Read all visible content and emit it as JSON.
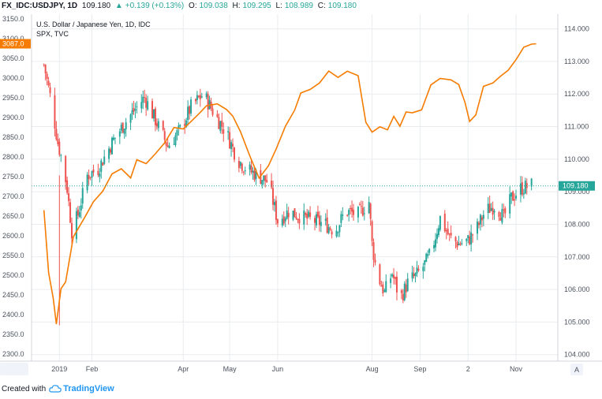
{
  "header": {
    "symbol": "FX_IDC:USDJPY, 1D",
    "last": "109.180",
    "change": "+0.139 (+0.13%)",
    "o_label": "O:",
    "o": "109.038",
    "h_label": "H:",
    "h": "109.295",
    "l_label": "L:",
    "l": "108.989",
    "c_label": "C:",
    "c": "109.180"
  },
  "legend": {
    "line1": "U.S. Dollar / Japanese Yen, 1D, IDC",
    "line2": "SPX, TVC"
  },
  "footer": {
    "created_with": "Created with",
    "brand": "TradingView"
  },
  "colors": {
    "up": "#26a69a",
    "down": "#ef5350",
    "spx": "#f57c00",
    "grid": "#e9ecef",
    "axis_text": "#4c525e",
    "price_line": "#26a69a"
  },
  "chart_data": {
    "type": "candlestick+line",
    "x_labels": [
      {
        "text": "2019",
        "day": 10
      },
      {
        "text": "Feb",
        "day": 31
      },
      {
        "text": "Apr",
        "day": 90
      },
      {
        "text": "May",
        "day": 120
      },
      {
        "text": "Jun",
        "day": 151
      },
      {
        "text": "Aug",
        "day": 212
      },
      {
        "text": "Sep",
        "day": 243
      },
      {
        "text": "2",
        "day": 274
      },
      {
        "text": "Nov",
        "day": 305
      }
    ],
    "left_axis": {
      "series": "SPX",
      "ticks": [
        "2300.0",
        "2350.0",
        "2400.0",
        "2450.0",
        "2500.0",
        "2550.0",
        "2600.0",
        "2650.0",
        "2700.0",
        "2750.0",
        "2800.0",
        "2850.0",
        "2900.0",
        "2950.0",
        "3000.0",
        "3050.0",
        "3100.0",
        "3150.0"
      ],
      "min": 2282,
      "max": 3162,
      "current_label": "3087.0"
    },
    "right_axis": {
      "series": "USDJPY",
      "ticks": [
        "104.000",
        "105.000",
        "106.000",
        "107.000",
        "108.000",
        "109.000",
        "110.000",
        "111.000",
        "112.000",
        "113.000",
        "114.000"
      ],
      "min": 103.8,
      "max": 114.45,
      "current_label": "109.180",
      "current_value": 109.18,
      "corner": "A"
    },
    "usdjpy_anchors": [
      [
        0,
        112.9
      ],
      [
        5,
        111.7
      ],
      [
        9,
        110.5
      ],
      [
        12,
        109.9
      ],
      [
        15,
        109.1
      ],
      [
        18,
        107.8
      ],
      [
        22,
        108.3
      ],
      [
        28,
        109.5
      ],
      [
        35,
        109.7
      ],
      [
        45,
        110.6
      ],
      [
        55,
        111.3
      ],
      [
        65,
        111.9
      ],
      [
        72,
        111.2
      ],
      [
        80,
        110.4
      ],
      [
        88,
        110.9
      ],
      [
        95,
        111.6
      ],
      [
        103,
        112.0
      ],
      [
        110,
        111.4
      ],
      [
        118,
        110.8
      ],
      [
        125,
        110.0
      ],
      [
        131,
        109.7
      ],
      [
        138,
        109.5
      ],
      [
        145,
        109.3
      ],
      [
        151,
        108.1
      ],
      [
        158,
        108.4
      ],
      [
        168,
        108.2
      ],
      [
        175,
        108.1
      ],
      [
        182,
        108.0
      ],
      [
        188,
        107.8
      ],
      [
        195,
        108.4
      ],
      [
        203,
        108.3
      ],
      [
        210,
        108.7
      ],
      [
        212,
        107.4
      ],
      [
        215,
        106.5
      ],
      [
        220,
        105.9
      ],
      [
        225,
        106.5
      ],
      [
        230,
        105.7
      ],
      [
        236,
        106.3
      ],
      [
        240,
        106.4
      ],
      [
        245,
        106.7
      ],
      [
        250,
        107.1
      ],
      [
        256,
        108.2
      ],
      [
        262,
        107.6
      ],
      [
        268,
        107.4
      ],
      [
        274,
        107.5
      ],
      [
        280,
        107.9
      ],
      [
        285,
        108.4
      ],
      [
        292,
        108.6
      ],
      [
        297,
        108.2
      ],
      [
        302,
        108.8
      ],
      [
        308,
        109.1
      ],
      [
        315,
        109.2
      ]
    ],
    "spx_anchors": [
      [
        0,
        2665
      ],
      [
        3,
        2510
      ],
      [
        6,
        2440
      ],
      [
        8,
        2380
      ],
      [
        11,
        2470
      ],
      [
        14,
        2480
      ],
      [
        19,
        2600
      ],
      [
        26,
        2640
      ],
      [
        32,
        2690
      ],
      [
        38,
        2715
      ],
      [
        44,
        2760
      ],
      [
        50,
        2775
      ],
      [
        56,
        2745
      ],
      [
        60,
        2795
      ],
      [
        66,
        2780
      ],
      [
        72,
        2805
      ],
      [
        78,
        2835
      ],
      [
        84,
        2870
      ],
      [
        90,
        2875
      ],
      [
        95,
        2890
      ],
      [
        100,
        2905
      ],
      [
        105,
        2925
      ],
      [
        112,
        2935
      ],
      [
        118,
        2925
      ],
      [
        122,
        2900
      ],
      [
        127,
        2860
      ],
      [
        133,
        2800
      ],
      [
        139,
        2750
      ],
      [
        145,
        2780
      ],
      [
        150,
        2820
      ],
      [
        156,
        2880
      ],
      [
        162,
        2915
      ],
      [
        166,
        2960
      ],
      [
        172,
        2970
      ],
      [
        178,
        2990
      ],
      [
        184,
        3015
      ],
      [
        190,
        3000
      ],
      [
        196,
        3015
      ],
      [
        203,
        3010
      ],
      [
        208,
        2885
      ],
      [
        212,
        2860
      ],
      [
        217,
        2880
      ],
      [
        222,
        2870
      ],
      [
        226,
        2900
      ],
      [
        230,
        2880
      ],
      [
        234,
        2910
      ],
      [
        238,
        2915
      ],
      [
        244,
        2915
      ],
      [
        250,
        2980
      ],
      [
        256,
        3000
      ],
      [
        263,
        2995
      ],
      [
        268,
        2985
      ],
      [
        272,
        2935
      ],
      [
        275,
        2890
      ],
      [
        279,
        2910
      ],
      [
        284,
        2975
      ],
      [
        290,
        2990
      ],
      [
        295,
        3005
      ],
      [
        300,
        3025
      ],
      [
        305,
        3050
      ],
      [
        310,
        3075
      ],
      [
        315,
        3085
      ],
      [
        318,
        3087
      ]
    ]
  }
}
